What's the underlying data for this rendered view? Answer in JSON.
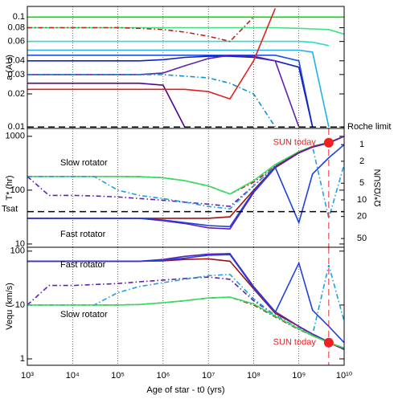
{
  "chart_data": [
    {
      "type": "line",
      "y_label": "a (AU)",
      "log_x": true,
      "log_y": true,
      "x": [
        1000,
        3000,
        10000,
        30000,
        100000,
        300000,
        1000000,
        3000000,
        10000000,
        30000000,
        100000000,
        300000000,
        1000000000,
        2000000000,
        4570000000,
        10000000000
      ],
      "xlim": [
        1000,
        10000000000
      ],
      "xticks": [
        1000,
        10000,
        100000,
        1000000,
        10000000,
        100000000,
        1000000000,
        10000000000
      ],
      "grid": true,
      "ylim": [
        0.0097,
        0.125
      ],
      "yticks": [
        0.01,
        0.02,
        0.03,
        0.04,
        0.06,
        0.08,
        0.1
      ],
      "hlines": [
        {
          "value": 0.01,
          "label": "Roche limit"
        }
      ],
      "series": [
        {
          "color": "#00dd00",
          "style": "solid",
          "values": [
            0.1,
            0.1,
            0.1,
            0.1,
            0.1,
            0.1,
            0.1,
            0.1,
            0.1,
            0.1,
            0.1,
            0.1,
            0.1,
            0.1,
            0.1,
            0.1
          ]
        },
        {
          "color": "#40e080",
          "style": "solid",
          "values": [
            0.08,
            0.08,
            0.08,
            0.08,
            0.08,
            0.08,
            0.08,
            0.08,
            0.08,
            0.08,
            0.08,
            0.08,
            0.079,
            0.078,
            0.077,
            0.07
          ]
        },
        {
          "color": "#30d8d0",
          "style": "solid",
          "values": [
            0.06,
            0.06,
            0.06,
            0.06,
            0.06,
            0.06,
            0.06,
            0.06,
            0.06,
            0.06,
            0.06,
            0.06,
            0.06,
            0.059,
            0.055,
            null
          ]
        },
        {
          "color": "#20b0e8",
          "style": "solid",
          "values": [
            0.05,
            0.05,
            0.05,
            0.05,
            0.05,
            0.05,
            0.05,
            0.05,
            0.05,
            0.05,
            0.05,
            0.05,
            0.05,
            0.048,
            0.01,
            null
          ]
        },
        {
          "color": "#2050e0",
          "style": "solid",
          "values": [
            0.045,
            0.045,
            0.045,
            0.045,
            0.045,
            0.045,
            0.045,
            0.045,
            0.045,
            0.045,
            0.045,
            0.045,
            0.04,
            0.01,
            null,
            null
          ]
        },
        {
          "color": "#1020c0",
          "style": "solid",
          "values": [
            0.04,
            0.04,
            0.04,
            0.04,
            0.04,
            0.04,
            0.041,
            0.043,
            0.044,
            0.044,
            0.043,
            0.04,
            0.035,
            0.01,
            null,
            null
          ]
        },
        {
          "color": "#6020b0",
          "style": "solid",
          "values": [
            0.03,
            0.03,
            0.03,
            0.03,
            0.03,
            0.03,
            0.031,
            0.036,
            0.042,
            0.045,
            0.044,
            0.04,
            0.01,
            null,
            null,
            null
          ]
        },
        {
          "color": "#500090",
          "style": "solid",
          "values": [
            0.025,
            0.025,
            0.025,
            0.025,
            0.025,
            0.025,
            0.024,
            0.01,
            null,
            null,
            null,
            null,
            null,
            null,
            null,
            null
          ]
        },
        {
          "color": "#1090d0",
          "style": "dashdot",
          "values": [
            0.03,
            0.03,
            0.03,
            0.03,
            0.03,
            0.03,
            0.03,
            0.029,
            0.028,
            0.025,
            0.02,
            0.01,
            null,
            null,
            null,
            null
          ]
        },
        {
          "color": "#e02020",
          "style": "solid",
          "values": [
            0.022,
            0.022,
            0.022,
            0.022,
            0.022,
            0.022,
            0.022,
            0.022,
            0.021,
            0.018,
            0.04,
            0.12,
            null,
            null,
            null,
            null
          ]
        },
        {
          "color": "#c02020",
          "style": "dashdot",
          "values": [
            0.08,
            0.08,
            0.08,
            0.08,
            0.08,
            0.079,
            0.077,
            0.073,
            0.067,
            0.06,
            0.1,
            null,
            null,
            null,
            null,
            null
          ]
        }
      ]
    },
    {
      "type": "line",
      "y_label": "T* (hr)",
      "y2_label": "Ω*/ΩSUN",
      "log_x": true,
      "log_y": true,
      "x": [
        1000,
        3000,
        10000,
        30000,
        100000,
        300000,
        1000000,
        3000000,
        10000000,
        30000000,
        100000000,
        300000000,
        1000000000,
        2000000000,
        4570000000,
        10000000000
      ],
      "xlim": [
        1000,
        10000000000
      ],
      "xticks": [
        1000,
        10000,
        100000,
        1000000,
        10000000,
        100000000,
        1000000000,
        10000000000
      ],
      "grid": true,
      "ylim": [
        8.7,
        1400
      ],
      "yticks": [
        10,
        100,
        1000
      ],
      "y2lim": [
        72,
        0.51
      ],
      "y2ticks": [
        1,
        2,
        5,
        10,
        20,
        50
      ],
      "hlines": [
        {
          "value": 40,
          "label": "Tsat"
        }
      ],
      "annotations": [
        "Slow rotator",
        "Fast rotator"
      ],
      "sun_today": {
        "label": "SUN today",
        "age": 4570000000,
        "value": 760,
        "color": "#ee2020"
      },
      "series": [
        {
          "color": "#c02020",
          "style": "dashdot",
          "values": [
            180,
            180,
            180,
            180,
            180,
            178,
            170,
            150,
            120,
            85,
            140,
            280,
            500,
            640,
            760,
            1000
          ]
        },
        {
          "color": "#30e060",
          "style": "solid",
          "values": [
            180,
            180,
            180,
            180,
            180,
            178,
            170,
            150,
            120,
            85,
            150,
            300,
            520,
            650,
            770,
            1000
          ]
        },
        {
          "color": "#6020b0",
          "style": "dashdot",
          "values": [
            180,
            80,
            80,
            78,
            75,
            70,
            65,
            60,
            55,
            50,
            120,
            280,
            500,
            640,
            760,
            1000
          ]
        },
        {
          "color": "#20a0e0",
          "style": "dashdot",
          "values": [
            180,
            180,
            180,
            180,
            100,
            80,
            70,
            60,
            50,
            45,
            120,
            280,
            500,
            640,
            30,
            300
          ]
        },
        {
          "color": "#a01010",
          "style": "solid",
          "values": [
            30,
            30,
            30,
            30,
            30,
            30,
            30,
            30,
            30,
            32,
            100,
            270,
            500,
            640,
            760,
            1000
          ]
        },
        {
          "color": "#6020b0",
          "style": "solid",
          "values": [
            30,
            30,
            30,
            30,
            30,
            30,
            27,
            24,
            20,
            19,
            90,
            260,
            490,
            630,
            750,
            1000
          ]
        },
        {
          "color": "#2040e0",
          "style": "solid",
          "values": [
            30,
            30,
            30,
            30,
            30,
            30,
            28,
            25,
            22,
            21,
            95,
            265,
            25,
            200,
            400,
            700
          ]
        }
      ]
    },
    {
      "type": "line",
      "y_label": "Vequ (km/s)",
      "x_label": "Age of star - t0 (yrs)",
      "log_x": true,
      "log_y": true,
      "x": [
        1000,
        3000,
        10000,
        30000,
        100000,
        300000,
        1000000,
        3000000,
        10000000,
        30000000,
        100000000,
        300000000,
        1000000000,
        2000000000,
        4570000000,
        10000000000
      ],
      "xlim": [
        1000,
        10000000000
      ],
      "xticks": [
        {
          "value": 1000,
          "label": "10³"
        },
        {
          "value": 10000,
          "label": "10⁴"
        },
        {
          "value": 100000,
          "label": "10⁵"
        },
        {
          "value": 1000000,
          "label": "10⁶"
        },
        {
          "value": 10000000,
          "label": "10⁷"
        },
        {
          "value": 100000000,
          "label": "10⁸"
        },
        {
          "value": 1000000000,
          "label": "10⁹"
        },
        {
          "value": 10000000000,
          "label": "10¹⁰"
        }
      ],
      "grid": true,
      "ylim": [
        0.76,
        118
      ],
      "yticks": [
        1,
        10,
        100
      ],
      "annotations": [
        "Fast rotator",
        "Slow rotator"
      ],
      "sun_today": {
        "label": "SUN today",
        "age": 4570000000,
        "value": 2,
        "color": "#ee2020"
      },
      "series": [
        {
          "color": "#a01010",
          "style": "solid",
          "values": [
            65,
            65,
            65,
            65,
            65,
            65,
            66,
            70,
            72,
            65,
            20,
            7,
            4,
            2.8,
            2,
            1.5
          ]
        },
        {
          "color": "#6020b0",
          "style": "solid",
          "values": [
            65,
            65,
            65,
            65,
            65,
            65,
            70,
            80,
            88,
            90,
            22,
            7.5,
            4,
            2.9,
            2.05,
            1.5
          ]
        },
        {
          "color": "#2040e0",
          "style": "solid",
          "values": [
            65,
            65,
            65,
            65,
            65,
            65,
            68,
            74,
            84,
            86,
            21,
            7.3,
            60,
            8,
            4,
            2
          ]
        },
        {
          "color": "#c02020",
          "style": "dashdot",
          "values": [
            10,
            10,
            10,
            10,
            10,
            10.2,
            11,
            12,
            13.5,
            14,
            10,
            6,
            3.5,
            2.7,
            2,
            1.5
          ]
        },
        {
          "color": "#6020b0",
          "style": "dashdot",
          "values": [
            10,
            23,
            23,
            24,
            25,
            27,
            29,
            31,
            33,
            30,
            12,
            6.5,
            3.6,
            2.8,
            2.05,
            1.5
          ]
        },
        {
          "color": "#20a0e0",
          "style": "dashdot",
          "values": [
            10,
            10,
            10,
            10,
            17,
            22,
            26,
            30,
            35,
            37,
            13,
            6.4,
            3.7,
            2.8,
            55,
            5
          ]
        },
        {
          "color": "#30e060",
          "style": "solid",
          "values": [
            10,
            10,
            10,
            10,
            10,
            10.2,
            11,
            12,
            13.5,
            14,
            10.5,
            6.2,
            3.6,
            2.7,
            2,
            1.6
          ]
        }
      ]
    }
  ]
}
